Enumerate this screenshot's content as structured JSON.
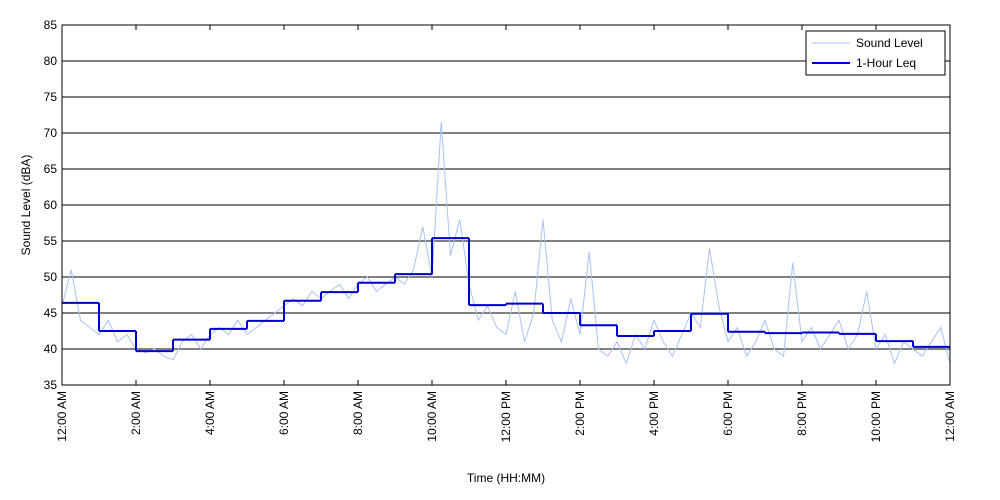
{
  "chart_data": {
    "type": "line",
    "xlabel": "Time (HH:MM)",
    "ylabel": "Sound Level (dBA)",
    "xlim": [
      0,
      24
    ],
    "ylim": [
      35,
      85
    ],
    "yticks": [
      35,
      40,
      45,
      50,
      55,
      60,
      65,
      70,
      75,
      80,
      85
    ],
    "xticks": [
      {
        "value": 0,
        "label": "12:00 AM"
      },
      {
        "value": 2,
        "label": "2:00 AM"
      },
      {
        "value": 4,
        "label": "4:00 AM"
      },
      {
        "value": 6,
        "label": "6:00 AM"
      },
      {
        "value": 8,
        "label": "8:00 AM"
      },
      {
        "value": 10,
        "label": "10:00 AM"
      },
      {
        "value": 12,
        "label": "12:00 PM"
      },
      {
        "value": 14,
        "label": "2:00 PM"
      },
      {
        "value": 16,
        "label": "4:00 PM"
      },
      {
        "value": 18,
        "label": "6:00 PM"
      },
      {
        "value": 20,
        "label": "8:00 PM"
      },
      {
        "value": 22,
        "label": "10:00 PM"
      },
      {
        "value": 24,
        "label": "12:00 AM"
      }
    ],
    "grid": true,
    "legend": "northeast",
    "series": [
      {
        "name": "Sound Level",
        "color": "#a9c1f5",
        "style": "line",
        "x": [
          0,
          0.25,
          0.5,
          0.75,
          1,
          1.25,
          1.5,
          1.75,
          2,
          2.25,
          2.5,
          2.75,
          3,
          3.25,
          3.5,
          3.75,
          4,
          4.25,
          4.5,
          4.75,
          5,
          5.25,
          5.5,
          5.75,
          6,
          6.25,
          6.5,
          6.75,
          7,
          7.25,
          7.5,
          7.75,
          8,
          8.25,
          8.5,
          8.75,
          9,
          9.25,
          9.5,
          9.75,
          10,
          10.25,
          10.5,
          10.75,
          11,
          11.25,
          11.5,
          11.75,
          12,
          12.25,
          12.5,
          12.75,
          13,
          13.25,
          13.5,
          13.75,
          14,
          14.25,
          14.5,
          14.75,
          15,
          15.25,
          15.5,
          15.75,
          16,
          16.25,
          16.5,
          16.75,
          17,
          17.25,
          17.5,
          17.75,
          18,
          18.25,
          18.5,
          18.75,
          19,
          19.25,
          19.5,
          19.75,
          20,
          20.25,
          20.5,
          20.75,
          21,
          21.25,
          21.5,
          21.75,
          22,
          22.25,
          22.5,
          22.75,
          23,
          23.25,
          23.5,
          23.75,
          24
        ],
        "values": [
          46,
          51,
          44,
          43,
          42,
          44,
          41,
          42,
          40,
          39.5,
          40,
          39,
          38.5,
          41,
          42,
          40,
          42,
          43,
          42,
          44,
          42,
          43,
          44,
          45,
          46,
          47,
          46,
          48,
          47,
          48,
          49,
          47,
          49,
          50,
          48,
          49,
          50,
          49,
          51,
          57,
          50,
          71.5,
          53,
          58,
          49,
          44,
          46,
          43,
          42,
          48,
          41,
          45,
          58,
          44,
          41,
          47,
          42,
          53.5,
          40,
          39,
          41,
          38,
          42,
          40,
          44,
          41,
          39,
          42,
          45,
          43,
          54,
          46,
          41,
          43,
          39,
          41,
          44,
          40,
          39,
          52,
          41,
          43,
          40,
          42,
          44,
          40,
          42,
          48,
          40,
          42,
          38,
          41,
          40,
          39,
          41,
          43,
          38
        ]
      },
      {
        "name": "1-Hour Leq",
        "color": "#0000cc",
        "style": "step",
        "x": [
          0,
          1,
          2,
          3,
          4,
          5,
          6,
          7,
          8,
          9,
          10,
          11,
          12,
          13,
          14,
          15,
          16,
          17,
          18,
          19,
          20,
          21,
          22,
          23
        ],
        "values": [
          46.4,
          42.5,
          39.7,
          41.3,
          42.8,
          43.9,
          46.7,
          47.9,
          49.2,
          50.4,
          55.4,
          46.1,
          46.3,
          45,
          43.3,
          41.8,
          42.5,
          44.9,
          42.4,
          42.2,
          42.3,
          42.1,
          41.1,
          40.3
        ]
      }
    ]
  }
}
